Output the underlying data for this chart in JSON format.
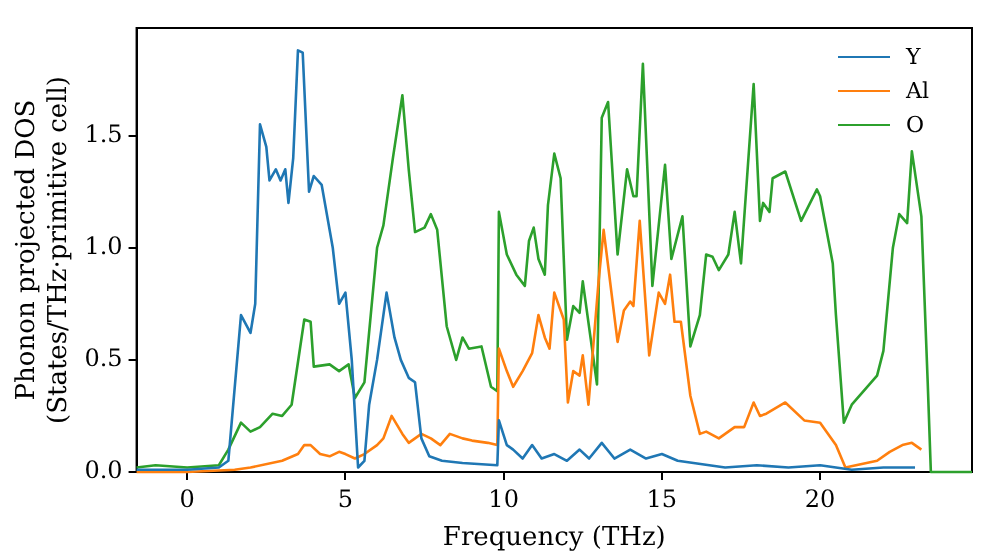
{
  "chart_data": {
    "type": "line",
    "xlabel": "Frequency (THz)",
    "ylabel": "Phonon projected DOS\n(States/THz·primitive cell)",
    "xlim": [
      -1.6,
      24.8
    ],
    "xticks": [
      0,
      5,
      10,
      15,
      20
    ],
    "ylim": [
      0,
      1.98
    ],
    "yticks": [
      {
        "value": 0,
        "label": "0.0"
      },
      0.5,
      {
        "value": 1,
        "label": "1.0"
      },
      1.5
    ],
    "legend": "top right",
    "grid": false,
    "marker": "none",
    "line_style": "solid",
    "series": [
      {
        "name": "Y",
        "color": "#1f77b4",
        "x": [
          -1.6,
          0,
          1,
          1.3,
          1.7,
          2.0,
          2.15,
          2.3,
          2.5,
          2.6,
          2.8,
          2.95,
          3.1,
          3.2,
          3.35,
          3.5,
          3.65,
          3.85,
          4.0,
          4.25,
          4.6,
          4.8,
          5.0,
          5.2,
          5.4,
          5.6,
          5.75,
          6.0,
          6.3,
          6.55,
          6.75,
          7.0,
          7.2,
          7.4,
          7.65,
          8.05,
          8.7,
          9.8,
          9.85,
          10.1,
          10.3,
          10.6,
          10.9,
          11.2,
          11.6,
          12.0,
          12.4,
          12.7,
          13.1,
          13.5,
          14.0,
          14.5,
          15.0,
          15.5,
          16.0,
          17.0,
          18.0,
          19.0,
          20.0,
          21.0,
          22.0,
          23.0
        ],
        "values": [
          0.01,
          0.01,
          0.02,
          0.05,
          0.7,
          0.62,
          0.75,
          1.55,
          1.45,
          1.3,
          1.35,
          1.3,
          1.35,
          1.2,
          1.4,
          1.88,
          1.87,
          1.25,
          1.32,
          1.28,
          1.0,
          0.75,
          0.8,
          0.5,
          0.02,
          0.05,
          0.3,
          0.5,
          0.8,
          0.6,
          0.5,
          0.42,
          0.4,
          0.15,
          0.07,
          0.05,
          0.04,
          0.03,
          0.23,
          0.12,
          0.1,
          0.06,
          0.12,
          0.06,
          0.08,
          0.05,
          0.1,
          0.06,
          0.13,
          0.06,
          0.1,
          0.06,
          0.08,
          0.05,
          0.04,
          0.02,
          0.03,
          0.02,
          0.03,
          0.01,
          0.02,
          0.02
        ]
      },
      {
        "name": "Al",
        "color": "#ff7f0e",
        "x": [
          -1.6,
          0,
          1.5,
          2.0,
          3.0,
          3.5,
          3.7,
          3.9,
          4.2,
          4.5,
          4.8,
          5.0,
          5.3,
          5.6,
          6.0,
          6.2,
          6.46,
          6.8,
          7.0,
          7.4,
          7.7,
          8.0,
          8.3,
          8.7,
          9.0,
          9.5,
          9.8,
          9.85,
          10.1,
          10.3,
          10.6,
          10.9,
          11.1,
          11.3,
          11.45,
          11.6,
          11.9,
          12.03,
          12.2,
          12.4,
          12.5,
          12.68,
          13.0,
          13.16,
          13.6,
          13.8,
          14.0,
          14.1,
          14.3,
          14.6,
          14.9,
          15.1,
          15.26,
          15.4,
          15.6,
          15.9,
          16.2,
          16.4,
          16.8,
          17.3,
          17.6,
          17.9,
          18.1,
          18.3,
          18.9,
          19.5,
          20.0,
          20.5,
          20.8,
          21.8,
          22.2,
          22.6,
          22.9,
          23.2
        ],
        "values": [
          0,
          0,
          0.01,
          0.02,
          0.05,
          0.08,
          0.12,
          0.12,
          0.08,
          0.07,
          0.09,
          0.08,
          0.06,
          0.08,
          0.12,
          0.15,
          0.25,
          0.17,
          0.13,
          0.17,
          0.15,
          0.12,
          0.17,
          0.15,
          0.14,
          0.13,
          0.12,
          0.55,
          0.45,
          0.38,
          0.45,
          0.53,
          0.7,
          0.6,
          0.55,
          0.8,
          0.68,
          0.31,
          0.45,
          0.43,
          0.52,
          0.3,
          0.85,
          1.08,
          0.58,
          0.72,
          0.76,
          0.74,
          1.12,
          0.52,
          0.8,
          0.75,
          0.88,
          0.67,
          0.67,
          0.34,
          0.17,
          0.18,
          0.15,
          0.2,
          0.2,
          0.31,
          0.25,
          0.26,
          0.31,
          0.23,
          0.22,
          0.12,
          0.02,
          0.05,
          0.09,
          0.12,
          0.13,
          0.1
        ]
      },
      {
        "name": "O",
        "color": "#2ca02c",
        "x": [
          -1.6,
          -1.0,
          0,
          1.0,
          1.3,
          1.7,
          2.0,
          2.3,
          2.7,
          3.0,
          3.3,
          3.7,
          3.9,
          4.0,
          4.5,
          4.8,
          5.1,
          5.3,
          5.6,
          5.8,
          6.0,
          6.2,
          6.5,
          6.8,
          7.0,
          7.2,
          7.5,
          7.7,
          7.9,
          8.2,
          8.5,
          8.7,
          8.9,
          9.3,
          9.6,
          9.8,
          9.85,
          10.1,
          10.4,
          10.67,
          10.8,
          10.95,
          11.1,
          11.3,
          11.4,
          11.6,
          11.8,
          12.0,
          12.2,
          12.4,
          12.5,
          12.95,
          13.1,
          13.3,
          13.6,
          13.9,
          14.1,
          14.2,
          14.4,
          14.7,
          15.1,
          15.3,
          15.65,
          15.9,
          16.2,
          16.4,
          16.6,
          16.8,
          17.1,
          17.3,
          17.5,
          17.9,
          18.1,
          18.2,
          18.4,
          18.5,
          18.9,
          19.4,
          19.9,
          20.0,
          20.4,
          20.5,
          20.75,
          21.0,
          21.8,
          22.0,
          22.3,
          22.5,
          22.75,
          22.9,
          23.2,
          23.4,
          23.5,
          24.8
        ],
        "values": [
          0.02,
          0.03,
          0.02,
          0.03,
          0.1,
          0.22,
          0.18,
          0.2,
          0.26,
          0.25,
          0.3,
          0.68,
          0.67,
          0.47,
          0.48,
          0.45,
          0.48,
          0.33,
          0.4,
          0.7,
          1.0,
          1.1,
          1.4,
          1.68,
          1.35,
          1.07,
          1.09,
          1.15,
          1.08,
          0.65,
          0.5,
          0.6,
          0.55,
          0.56,
          0.38,
          0.36,
          1.16,
          0.97,
          0.88,
          0.83,
          1.03,
          1.09,
          0.95,
          0.88,
          1.19,
          1.42,
          1.31,
          0.59,
          0.74,
          0.71,
          0.85,
          0.39,
          1.58,
          1.65,
          0.97,
          1.35,
          1.23,
          1.23,
          1.82,
          0.83,
          1.37,
          0.95,
          1.14,
          0.56,
          0.7,
          0.97,
          0.96,
          0.9,
          0.97,
          1.16,
          0.93,
          1.73,
          1.12,
          1.2,
          1.16,
          1.31,
          1.34,
          1.12,
          1.26,
          1.23,
          0.93,
          0.7,
          0.22,
          0.3,
          0.43,
          0.54,
          1.0,
          1.15,
          1.11,
          1.43,
          1.14,
          0.4,
          0,
          0
        ]
      }
    ]
  }
}
